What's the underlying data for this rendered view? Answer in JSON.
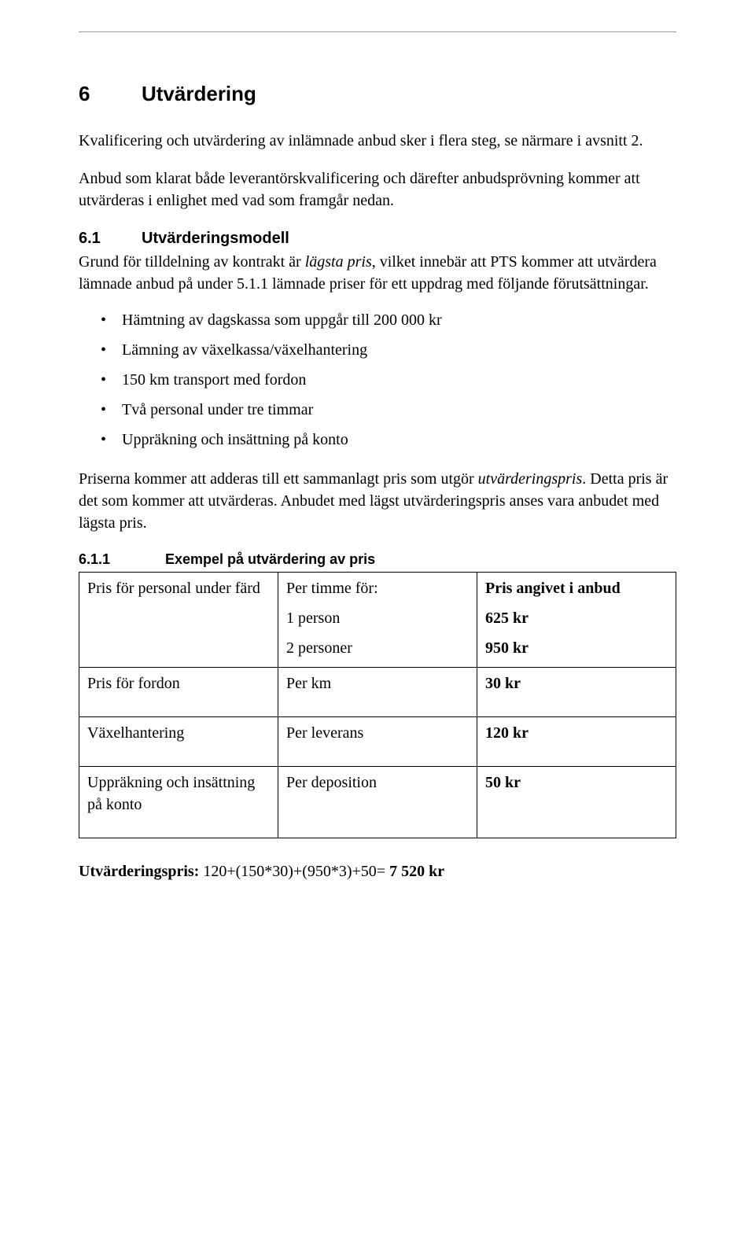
{
  "h1": {
    "num": "6",
    "title": "Utvärdering"
  },
  "p1": "Kvalificering och utvärdering av inlämnade anbud sker i flera steg, se närmare i avsnitt 2.",
  "p2": "Anbud som klarat både leverantörskvalificering och därefter anbudsprövning kommer att utvärderas i enlighet med vad som framgår nedan.",
  "h2": {
    "num": "6.1",
    "title": "Utvärderingsmodell"
  },
  "p3a": "Grund för tilldelning av kontrakt är ",
  "p3_em": "lägsta pris",
  "p3b": ", vilket innebär att PTS kommer att utvärdera lämnade anbud på under 5.1.1 lämnade priser för ett uppdrag med följande förutsättningar.",
  "bullets": [
    "Hämtning av dagskassa som uppgår till 200 000 kr",
    "Lämning av växelkassa/växelhantering",
    "150 km transport med fordon",
    "Två personal under tre timmar",
    "Uppräkning och insättning på konto"
  ],
  "p4a": "Priserna kommer att adderas till ett sammanlagt pris som utgör ",
  "p4_em": "utvärderingspris",
  "p4b": ". Detta pris är det som kommer att utvärderas. Anbudet med lägst utvärderingspris anses vara anbudet med lägsta pris.",
  "h3": {
    "num": "6.1.1",
    "title": "Exempel på utvärdering av pris"
  },
  "table": {
    "r1c1": "Pris för personal under färd",
    "r1c2a": "Per timme för:",
    "r1c2b": "1 person",
    "r1c2c": "2 personer",
    "r1c3a": "Pris angivet i anbud",
    "r1c3b": "625 kr",
    "r1c3c": "950 kr",
    "r2c1": "Pris för fordon",
    "r2c2": "Per km",
    "r2c3": "30 kr",
    "r3c1": "Växelhantering",
    "r3c2": "Per leverans",
    "r3c3": "120 kr",
    "r4c1": "Uppräkning och insättning på konto",
    "r4c2": "Per deposition",
    "r4c3": "50 kr"
  },
  "final_label": "Utvärderingspris:",
  "final_expr": " 120+(150*30)+(950*3)+50= ",
  "final_total": "7 520 kr"
}
